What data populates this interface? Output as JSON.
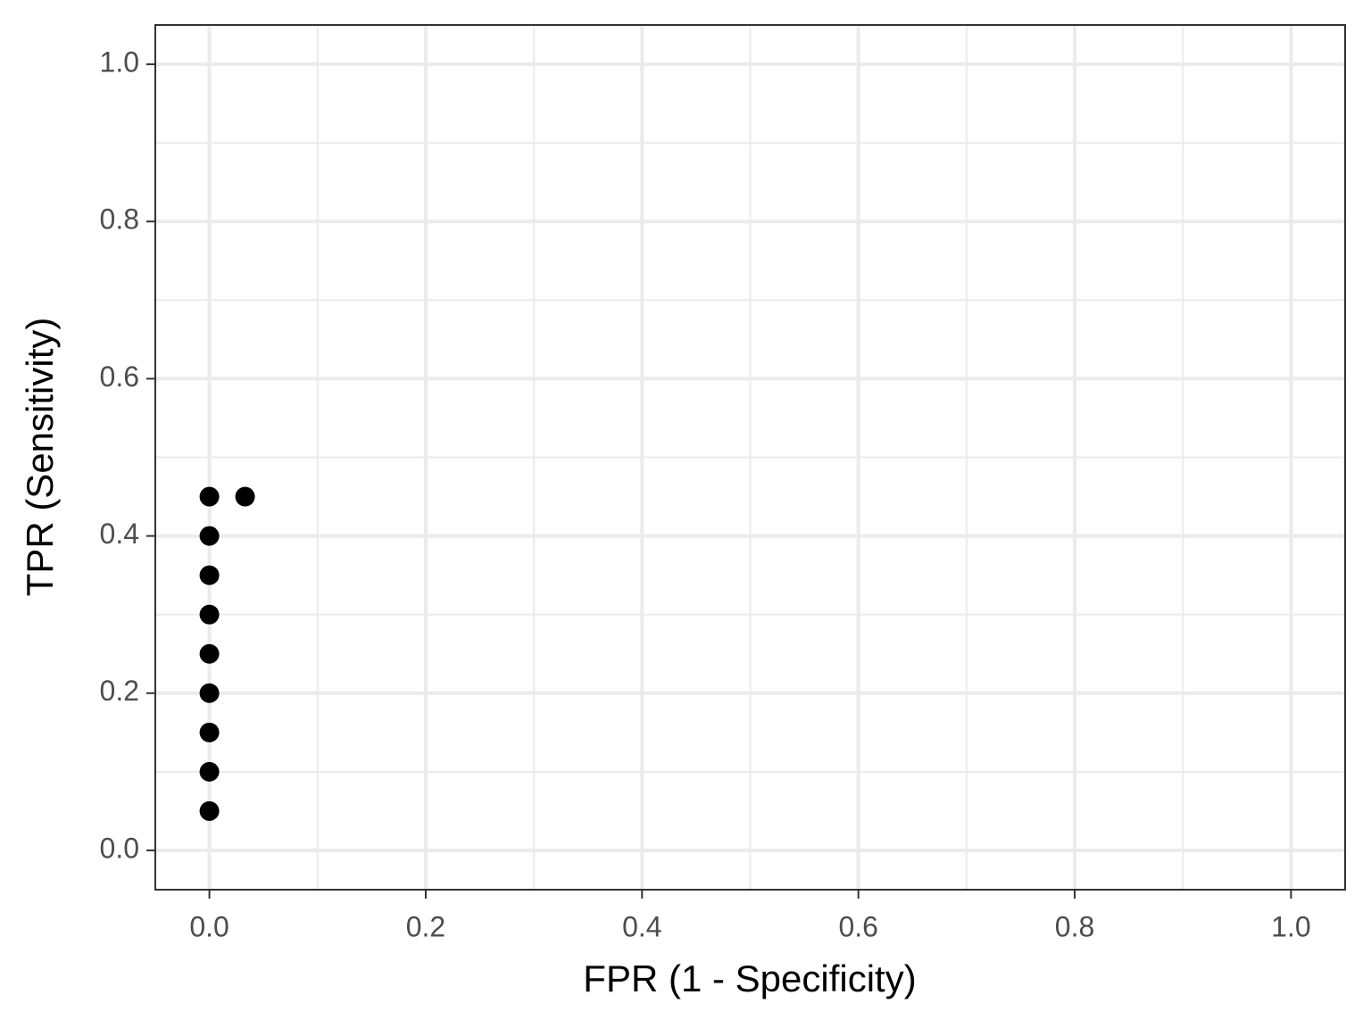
{
  "chart_data": {
    "type": "scatter",
    "x_label": "FPR (1 - Specificity)",
    "y_label": "TPR (Sensitivity)",
    "series": [
      {
        "color": "#000000",
        "x": [
          0,
          0,
          0,
          0,
          0,
          0,
          0,
          0,
          0,
          0.033
        ],
        "values": [
          0.05,
          0.1,
          0.15,
          0.2,
          0.25,
          0.3,
          0.35,
          0.4,
          0.45,
          0.45
        ]
      }
    ],
    "xlim": [
      -0.05,
      1.05
    ],
    "ylim": [
      -0.05,
      1.05
    ],
    "xticks": [
      {
        "value": 0,
        "label": "0.0"
      },
      0.2,
      0.4,
      0.6,
      0.8,
      {
        "value": 1,
        "label": "1.0"
      }
    ],
    "yticks": [
      {
        "value": 0,
        "label": "0.0"
      },
      0.2,
      0.4,
      0.6,
      0.8,
      {
        "value": 1,
        "label": "1.0"
      }
    ],
    "grid": true,
    "minor_grid": true
  }
}
